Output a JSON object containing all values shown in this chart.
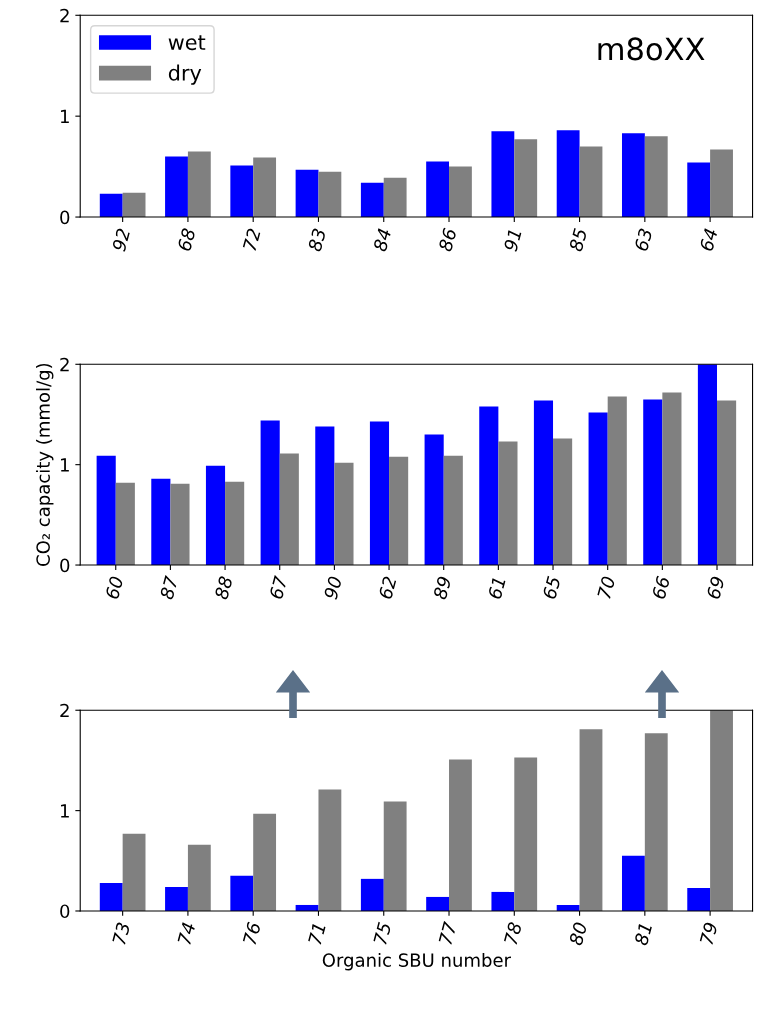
{
  "chart_data": [
    {
      "type": "bar",
      "categories": [
        "92",
        "68",
        "72",
        "83",
        "84",
        "86",
        "91",
        "85",
        "63",
        "64"
      ],
      "series": [
        {
          "name": "wet",
          "color": "#0000ff",
          "values": [
            0.23,
            0.6,
            0.51,
            0.47,
            0.34,
            0.55,
            0.85,
            0.86,
            0.83,
            0.54
          ]
        },
        {
          "name": "dry",
          "color": "#808080",
          "values": [
            0.24,
            0.65,
            0.59,
            0.45,
            0.39,
            0.5,
            0.77,
            0.7,
            0.8,
            0.67
          ]
        }
      ],
      "ylim": [
        0,
        2
      ],
      "yticks": [
        0,
        1,
        2
      ],
      "legend": "top left",
      "annotations": [
        "m8oXX"
      ]
    },
    {
      "type": "bar",
      "categories": [
        "60",
        "87",
        "88",
        "67",
        "90",
        "62",
        "89",
        "61",
        "65",
        "70",
        "66",
        "69"
      ],
      "series": [
        {
          "color": "#0000ff",
          "values": [
            1.09,
            0.86,
            0.99,
            1.44,
            1.38,
            1.43,
            1.3,
            1.58,
            1.64,
            1.52,
            1.65,
            2.0
          ]
        },
        {
          "color": "#808080",
          "values": [
            0.82,
            0.81,
            0.83,
            1.11,
            1.02,
            1.08,
            1.09,
            1.23,
            1.26,
            1.68,
            1.72,
            1.64
          ]
        }
      ],
      "ylim": [
        0,
        2
      ],
      "yticks": [
        0,
        1,
        2
      ],
      "ylabel": "CO₂ capacity (mmol/g)"
    },
    {
      "type": "bar",
      "categories": [
        "73",
        "74",
        "76",
        "71",
        "75",
        "77",
        "78",
        "80",
        "81",
        "79"
      ],
      "series": [
        {
          "color": "#0000ff",
          "values": [
            0.28,
            0.24,
            0.35,
            0.06,
            0.32,
            0.14,
            0.19,
            0.06,
            0.55,
            0.23
          ]
        },
        {
          "color": "#808080",
          "values": [
            0.77,
            0.66,
            0.97,
            1.21,
            1.09,
            1.51,
            1.53,
            1.81,
            1.77,
            2.0
          ]
        }
      ],
      "ylim": [
        0,
        2
      ],
      "yticks": [
        0,
        1,
        2
      ],
      "xlabel": "Organic SBU number"
    }
  ]
}
